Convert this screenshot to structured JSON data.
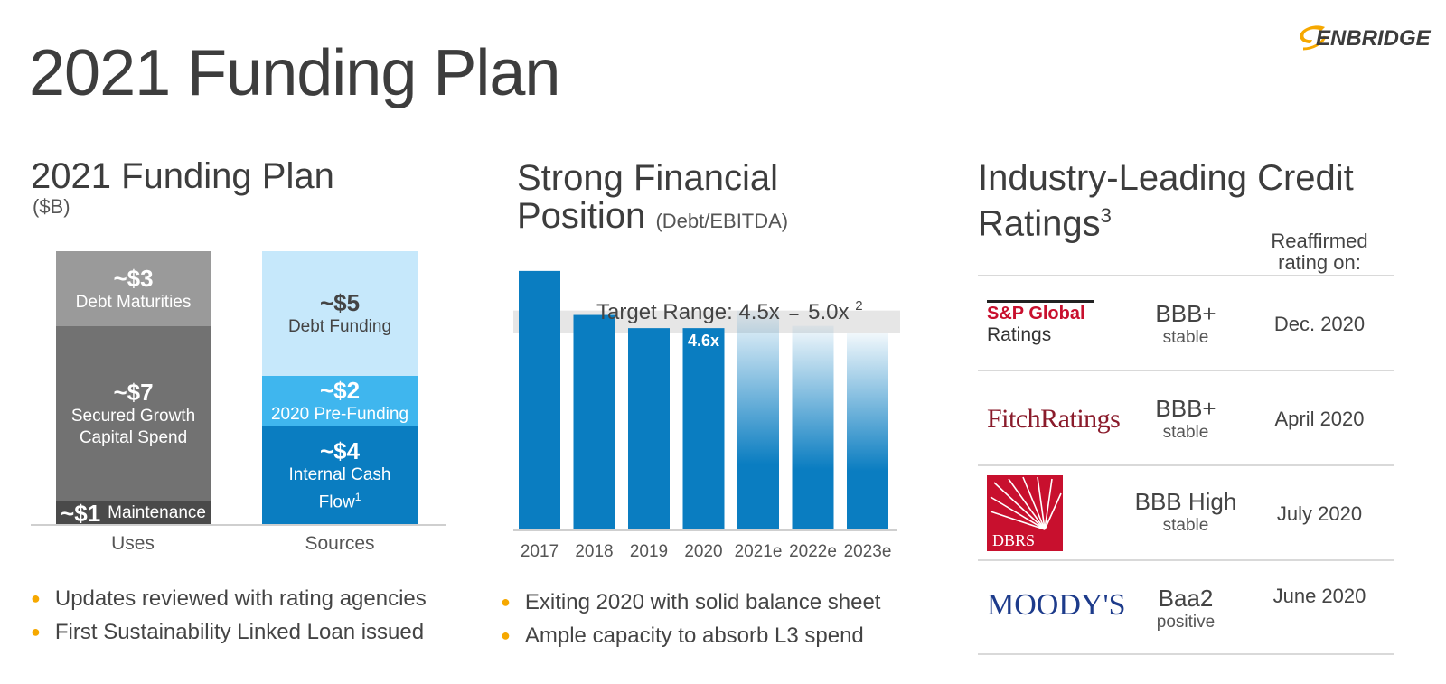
{
  "title": "2021 Funding Plan",
  "logo_text": "ENBRIDGE",
  "colors": {
    "accent_blue": "#0a7dc1",
    "bullet": "#f6a800",
    "gray_light": "#9a9a9a",
    "gray_mid": "#727272",
    "gray_dark": "#4a4a4a"
  },
  "funding": {
    "title": "2021 Funding Plan",
    "unit": "($B)",
    "bullets": [
      "Updates reviewed with rating agencies",
      "First Sustainability Linked Loan issued"
    ]
  },
  "financial": {
    "title_line1": "Strong Financial",
    "title_line2": "Position",
    "subtitle": "(Debt/EBITDA)",
    "target_label": "Target Range: 4.5x",
    "target_sep": "–",
    "target_label2": "5.0x",
    "target_sup": "2",
    "bullets": [
      "Exiting 2020 with solid balance sheet",
      "Ample capacity to absorb L3 spend"
    ]
  },
  "ratings": {
    "title": "Industry-Leading Credit Ratings",
    "title_sup": "3",
    "reaffirmed_header": "Reaffirmed rating on:",
    "rows": [
      {
        "agency_line1": "S&P Global",
        "agency_line2": "Ratings",
        "grade": "BBB+",
        "outlook": "stable",
        "date": "Dec. 2020"
      },
      {
        "agency_line1": "FitchRatings",
        "grade": "BBB+",
        "outlook": "stable",
        "date": "April 2020"
      },
      {
        "agency_line1": "DBRS",
        "grade": "BBB High",
        "outlook": "stable",
        "date": "July 2020"
      },
      {
        "agency_line1": "MOODY'S",
        "grade": "Baa2",
        "outlook": "positive",
        "date": "June 2020"
      }
    ]
  },
  "chart_data": [
    {
      "type": "bar",
      "stacked": true,
      "categories": [
        "Uses",
        "Sources"
      ],
      "ylim": [
        0,
        11
      ],
      "stacks": [
        {
          "category": "Uses",
          "segments": [
            {
              "amount": "~$1",
              "label": "Maintenance",
              "value": 1,
              "color": "#4a4a4a"
            },
            {
              "amount": "~$7",
              "label": "Secured Growth Capital Spend",
              "value": 7,
              "color": "#727272"
            },
            {
              "amount": "~$3",
              "label": "Debt Maturities",
              "value": 3,
              "color": "#9a9a9a"
            }
          ]
        },
        {
          "category": "Sources",
          "segments": [
            {
              "amount": "~$4",
              "label": "Internal Cash Flow",
              "label_sup": "1",
              "value": 4,
              "color": "#0a7dc1"
            },
            {
              "amount": "~$2",
              "label": "2020 Pre-Funding",
              "value": 2,
              "color": "#3fb6ee"
            },
            {
              "amount": "~$5",
              "label": "Debt Funding",
              "value": 5,
              "color": "#c6e8fb"
            }
          ]
        }
      ]
    },
    {
      "type": "bar",
      "categories": [
        "2017",
        "2018",
        "2019",
        "2020",
        "2021e",
        "2022e",
        "2023e"
      ],
      "values": [
        5.9,
        4.9,
        4.6,
        4.6,
        5.0,
        4.65,
        4.5
      ],
      "data_labels": [
        null,
        null,
        null,
        "4.6x",
        null,
        null,
        null
      ],
      "estimate_fade": [
        false,
        false,
        false,
        false,
        true,
        true,
        true
      ],
      "target_range": [
        4.5,
        5.0
      ],
      "ylim": [
        0,
        6.0
      ],
      "color": "#0a7dc1"
    }
  ]
}
